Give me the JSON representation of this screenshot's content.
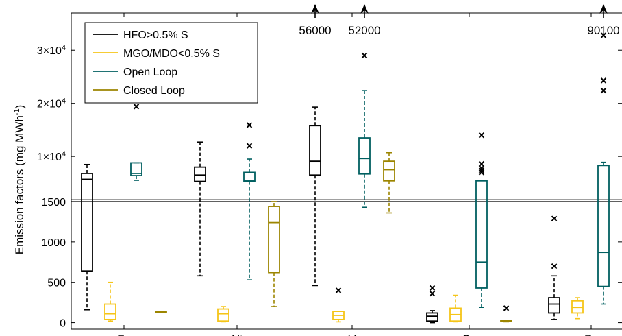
{
  "chart_data": {
    "type": "box",
    "categories": [
      "Fe",
      "Ni",
      "V",
      "Cu",
      "Zn"
    ],
    "ylabel": "Emission factors (mg MWh",
    "ylabel_sup": "-1",
    "ylabel_end": ")",
    "panels": {
      "upper": {
        "ylim": [
          1500,
          37000
        ],
        "ticks": [
          {
            "value": 10000,
            "mant": "1",
            "exp": "4"
          },
          {
            "value": 20000,
            "mant": "2",
            "exp": "4"
          },
          {
            "value": 30000,
            "mant": "3",
            "exp": "4"
          }
        ]
      },
      "lower": {
        "ylim": [
          -80,
          1500
        ],
        "ticks": [
          {
            "value": 0,
            "label": "0"
          },
          {
            "value": 500,
            "label": "500"
          },
          {
            "value": 1000,
            "label": "1000"
          },
          {
            "value": 1500,
            "label": "1500"
          }
        ]
      }
    },
    "legend": {
      "placement": "top-left",
      "entries": [
        {
          "key": "hfo",
          "label": "HFO>0.5% S"
        },
        {
          "key": "mgo",
          "label": "MGO/MDO<0.5% S"
        },
        {
          "key": "open",
          "label": "Open Loop"
        },
        {
          "key": "closed",
          "label": "Closed Loop"
        }
      ]
    },
    "series": {
      "hfo": {
        "color": "#000000"
      },
      "mgo": {
        "color": "#f5c518"
      },
      "open": {
        "color": "#005f60"
      },
      "closed": {
        "color": "#9c8500"
      }
    },
    "boxes": [
      {
        "category": "Fe",
        "series": "hfo",
        "whisker_low": 160,
        "q1": 640,
        "median": 5700,
        "q3": 6800,
        "whisker_high": 8500,
        "outliers": []
      },
      {
        "category": "Fe",
        "series": "mgo",
        "whisker_low": 20,
        "q1": 40,
        "median": 110,
        "q3": 230,
        "whisker_high": 500,
        "outliers": []
      },
      {
        "category": "Fe",
        "series": "open",
        "whisker_low": 5500,
        "q1": 6400,
        "median": 6800,
        "q3": 8800,
        "whisker_high": 8800,
        "outliers": [
          19400
        ]
      },
      {
        "category": "Fe",
        "series": "closed",
        "whisker_low": 140,
        "q1": 140,
        "median": 140,
        "q3": 140,
        "whisker_high": 140,
        "outliers": []
      },
      {
        "category": "Ni",
        "series": "hfo",
        "whisker_low": 580,
        "q1": 5300,
        "median": 6500,
        "q3": 8000,
        "whisker_high": 12700,
        "outliers": []
      },
      {
        "category": "Ni",
        "series": "mgo",
        "whisker_low": 10,
        "q1": 20,
        "median": 110,
        "q3": 170,
        "whisker_high": 200,
        "outliers": []
      },
      {
        "category": "Ni",
        "series": "open",
        "whisker_low": 530,
        "q1": 5300,
        "median": 5500,
        "q3": 7000,
        "whisker_high": 9500,
        "outliers": [
          12000,
          15900
        ]
      },
      {
        "category": "Ni",
        "series": "closed",
        "whisker_low": 200,
        "q1": 620,
        "median": 1240,
        "q3": 1440,
        "whisker_high": 1500,
        "outliers": []
      },
      {
        "category": "V",
        "series": "hfo",
        "whisker_low": 460,
        "q1": 6500,
        "median": 9100,
        "q3": 15800,
        "whisker_high": 19300,
        "outliers": []
      },
      {
        "category": "V",
        "series": "mgo",
        "whisker_low": 10,
        "q1": 40,
        "median": 90,
        "q3": 140,
        "whisker_high": 140,
        "outliers": [
          400
        ]
      },
      {
        "category": "V",
        "series": "open",
        "whisker_low": 1430,
        "q1": 6700,
        "median": 9600,
        "q3": 13500,
        "whisker_high": 22400,
        "outliers": [
          29000
        ]
      },
      {
        "category": "V",
        "series": "closed",
        "whisker_low": 1360,
        "q1": 5400,
        "median": 7500,
        "q3": 9100,
        "whisker_high": 10700,
        "outliers": []
      },
      {
        "category": "Cu",
        "series": "hfo",
        "whisker_low": 0,
        "q1": 20,
        "median": 80,
        "q3": 120,
        "whisker_high": 150,
        "outliers": [
          360,
          430
        ]
      },
      {
        "category": "Cu",
        "series": "mgo",
        "whisker_low": 10,
        "q1": 20,
        "median": 100,
        "q3": 180,
        "whisker_high": 340,
        "outliers": []
      },
      {
        "category": "Cu",
        "series": "open",
        "whisker_low": 190,
        "q1": 430,
        "median": 750,
        "q3": 5400,
        "whisker_high": 5500,
        "outliers": [
          7000,
          7400,
          7800,
          8600,
          14000
        ]
      },
      {
        "category": "Cu",
        "series": "closed",
        "whisker_low": 10,
        "q1": 20,
        "median": 25,
        "q3": 30,
        "whisker_high": 30,
        "outliers": [
          180
        ]
      },
      {
        "category": "Zn",
        "series": "hfo",
        "whisker_low": 40,
        "q1": 120,
        "median": 230,
        "q3": 310,
        "whisker_high": 580,
        "outliers": [
          700,
          1290
        ]
      },
      {
        "category": "Zn",
        "series": "mgo",
        "whisker_low": 50,
        "q1": 120,
        "median": 190,
        "q3": 270,
        "whisker_high": 310,
        "outliers": []
      },
      {
        "category": "Zn",
        "series": "open",
        "whisker_low": 230,
        "q1": 450,
        "median": 870,
        "q3": 8300,
        "whisker_high": 8900,
        "outliers": [
          22400,
          24300,
          32800
        ]
      },
      {
        "category": "Zn",
        "series": "closed",
        "whisker_low": 50,
        "q1": 70,
        "median": 100,
        "q3": 140,
        "whisker_high": 220,
        "outliers": []
      }
    ],
    "offscale": [
      {
        "category": "V",
        "series": "hfo",
        "value": 56000,
        "label": "56000"
      },
      {
        "category": "V",
        "series": "open",
        "value": 52000,
        "label": "52000"
      },
      {
        "category": "Zn",
        "series": "open",
        "value": 90100,
        "label": "90100"
      }
    ]
  }
}
